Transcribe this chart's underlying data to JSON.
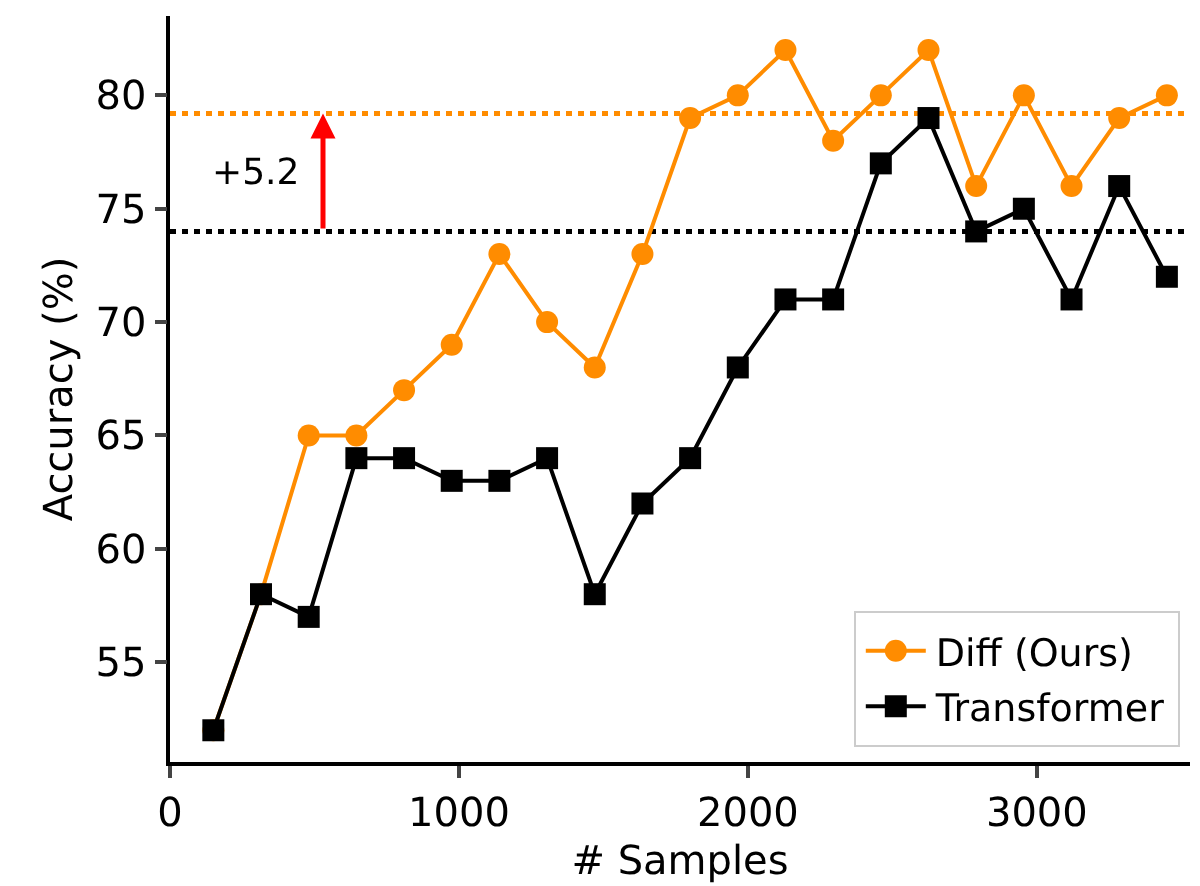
{
  "chart_data": {
    "type": "line",
    "xlabel": "# Samples",
    "ylabel": "Accuracy (%)",
    "x": [
      150,
      315,
      480,
      645,
      810,
      975,
      1140,
      1305,
      1470,
      1635,
      1800,
      1965,
      2130,
      2295,
      2460,
      2625,
      2790,
      2955,
      3120,
      3285,
      3450
    ],
    "series": [
      {
        "name": "Diff (Ours)",
        "color": "#ff8c00",
        "marker": "circle",
        "values": [
          52,
          58,
          65,
          65,
          67,
          69,
          73,
          70,
          68,
          73,
          79,
          80,
          82,
          78,
          80,
          82,
          76,
          80,
          76,
          79,
          80
        ]
      },
      {
        "name": "Transformer",
        "color": "#000000",
        "marker": "square",
        "values": [
          52,
          58,
          57,
          64,
          64,
          63,
          63,
          64,
          58,
          62,
          64,
          68,
          71,
          71,
          77,
          79,
          74,
          75,
          71,
          76,
          72
        ]
      }
    ],
    "xlim": [
      0,
      3530
    ],
    "xticks": [
      0,
      1000,
      2000,
      3000
    ],
    "ylim": [
      50.6,
      83.5
    ],
    "yticks": [
      55,
      60,
      65,
      70,
      75,
      80
    ],
    "ref_lines": [
      {
        "axis": "y",
        "value": 79.2,
        "color": "#ff8c00",
        "line_style": "dotted"
      },
      {
        "axis": "y",
        "value": 74,
        "color": "#000000",
        "line_style": "dotted"
      }
    ],
    "annotations": [
      "+5.2"
    ],
    "grid": false,
    "legend": "bottom right",
    "line_style": "solid"
  }
}
